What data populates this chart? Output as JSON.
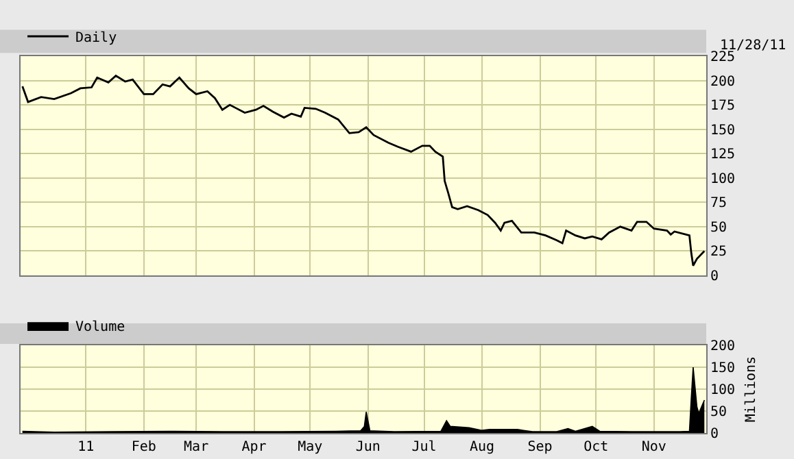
{
  "chart_data": [
    {
      "type": "line",
      "annotations": [
        "11/28/11"
      ],
      "legend": "top left",
      "grid": true,
      "tick_labels": "y",
      "marker": "none",
      "line_style": "solid",
      "xlim": [
        "2010-11-27",
        "2011-11-29"
      ],
      "xticks": [
        {
          "value": "2011-01-01",
          "label": null
        },
        {
          "value": "2011-02-01",
          "label": null
        },
        {
          "value": "2011-03-01",
          "label": null
        },
        {
          "value": "2011-04-01",
          "label": null
        },
        {
          "value": "2011-05-01",
          "label": null
        },
        {
          "value": "2011-06-01",
          "label": null
        },
        {
          "value": "2011-07-01",
          "label": null
        },
        {
          "value": "2011-08-01",
          "label": null
        },
        {
          "value": "2011-09-01",
          "label": null
        },
        {
          "value": "2011-10-01",
          "label": null
        },
        {
          "value": "2011-11-01",
          "label": null
        }
      ],
      "ylim": [
        0,
        225
      ],
      "yticks": [
        0,
        25,
        50,
        75,
        100,
        125,
        150,
        175,
        200,
        225
      ],
      "series": [
        {
          "name": "Daily",
          "color": "#000000",
          "x": [
            "2010-11-28",
            "2010-12-01",
            "2010-12-08",
            "2010-12-15",
            "2010-12-24",
            "2010-12-29",
            "2011-01-04",
            "2011-01-07",
            "2011-01-13",
            "2011-01-17",
            "2011-01-22",
            "2011-01-26",
            "2011-02-01",
            "2011-02-06",
            "2011-02-11",
            "2011-02-15",
            "2011-02-20",
            "2011-02-25",
            "2011-03-01",
            "2011-03-07",
            "2011-03-11",
            "2011-03-15",
            "2011-03-19",
            "2011-03-22",
            "2011-03-27",
            "2011-04-02",
            "2011-04-06",
            "2011-04-11",
            "2011-04-17",
            "2011-04-21",
            "2011-04-26",
            "2011-04-28",
            "2011-05-04",
            "2011-05-09",
            "2011-05-16",
            "2011-05-22",
            "2011-05-27",
            "2011-05-31",
            "2011-06-04",
            "2011-06-12",
            "2011-06-17",
            "2011-06-24",
            "2011-06-30",
            "2011-07-04",
            "2011-07-07",
            "2011-07-11",
            "2011-07-12",
            "2011-07-14",
            "2011-07-16",
            "2011-07-19",
            "2011-07-24",
            "2011-07-30",
            "2011-08-04",
            "2011-08-08",
            "2011-08-11",
            "2011-08-13",
            "2011-08-17",
            "2011-08-22",
            "2011-08-29",
            "2011-09-04",
            "2011-09-10",
            "2011-09-13",
            "2011-09-15",
            "2011-09-20",
            "2011-09-25",
            "2011-09-29",
            "2011-10-04",
            "2011-10-08",
            "2011-10-14",
            "2011-10-20",
            "2011-10-23",
            "2011-10-28",
            "2011-11-01",
            "2011-11-08",
            "2011-11-10",
            "2011-11-12",
            "2011-11-20",
            "2011-11-21",
            "2011-11-22",
            "2011-11-24",
            "2011-11-28"
          ],
          "values": [
            194,
            178,
            183,
            181,
            187,
            192,
            193,
            203,
            198,
            205,
            199,
            201,
            186,
            186,
            196,
            194,
            203,
            192,
            186,
            189,
            182,
            170,
            175,
            172,
            167,
            170,
            174,
            168,
            162,
            166,
            163,
            172,
            171,
            167,
            160,
            146,
            147,
            152,
            144,
            136,
            132,
            127,
            133,
            133,
            127,
            122,
            97,
            84,
            70,
            68,
            71,
            67,
            62,
            54,
            46,
            54,
            56,
            44,
            44,
            41,
            36,
            33,
            46,
            41,
            38,
            40,
            37,
            44,
            50,
            46,
            55,
            55,
            48,
            46,
            42,
            45,
            41,
            23,
            10,
            17,
            25
          ]
        }
      ]
    },
    {
      "type": "area",
      "ylabel": "Millions",
      "legend": "top left",
      "grid": true,
      "xlim": [
        "2010-11-27",
        "2011-11-29"
      ],
      "xticks": [
        {
          "value": "2011-01-01",
          "label": "11"
        },
        {
          "value": "2011-02-01",
          "label": "Feb"
        },
        {
          "value": "2011-03-01",
          "label": "Mar"
        },
        {
          "value": "2011-04-01",
          "label": "Apr"
        },
        {
          "value": "2011-05-01",
          "label": "May"
        },
        {
          "value": "2011-06-01",
          "label": "Jun"
        },
        {
          "value": "2011-07-01",
          "label": "Jul"
        },
        {
          "value": "2011-08-01",
          "label": "Aug"
        },
        {
          "value": "2011-09-01",
          "label": "Sep"
        },
        {
          "value": "2011-10-01",
          "label": "Oct"
        },
        {
          "value": "2011-11-01",
          "label": "Nov"
        }
      ],
      "ylim": [
        0,
        200
      ],
      "yticks": [
        0,
        50,
        100,
        150,
        200
      ],
      "series": [
        {
          "name": "Volume",
          "color": "#000000",
          "x": [
            "2010-11-28",
            "2010-12-15",
            "2011-01-15",
            "2011-02-15",
            "2011-03-15",
            "2011-04-15",
            "2011-05-15",
            "2011-05-28",
            "2011-05-30",
            "2011-05-31",
            "2011-06-02",
            "2011-06-15",
            "2011-07-10",
            "2011-07-13",
            "2011-07-15",
            "2011-07-25",
            "2011-08-01",
            "2011-08-05",
            "2011-08-20",
            "2011-08-28",
            "2011-09-10",
            "2011-09-16",
            "2011-09-20",
            "2011-09-29",
            "2011-10-03",
            "2011-10-20",
            "2011-11-15",
            "2011-11-20",
            "2011-11-21",
            "2011-11-22",
            "2011-11-23",
            "2011-11-24",
            "2011-11-25",
            "2011-11-28"
          ],
          "values": [
            4,
            2,
            3,
            4,
            3,
            3,
            4,
            5,
            15,
            48,
            5,
            3,
            4,
            28,
            15,
            12,
            6,
            8,
            8,
            3,
            3,
            10,
            4,
            15,
            4,
            3,
            3,
            4,
            80,
            150,
            105,
            60,
            45,
            75
          ]
        }
      ]
    }
  ]
}
